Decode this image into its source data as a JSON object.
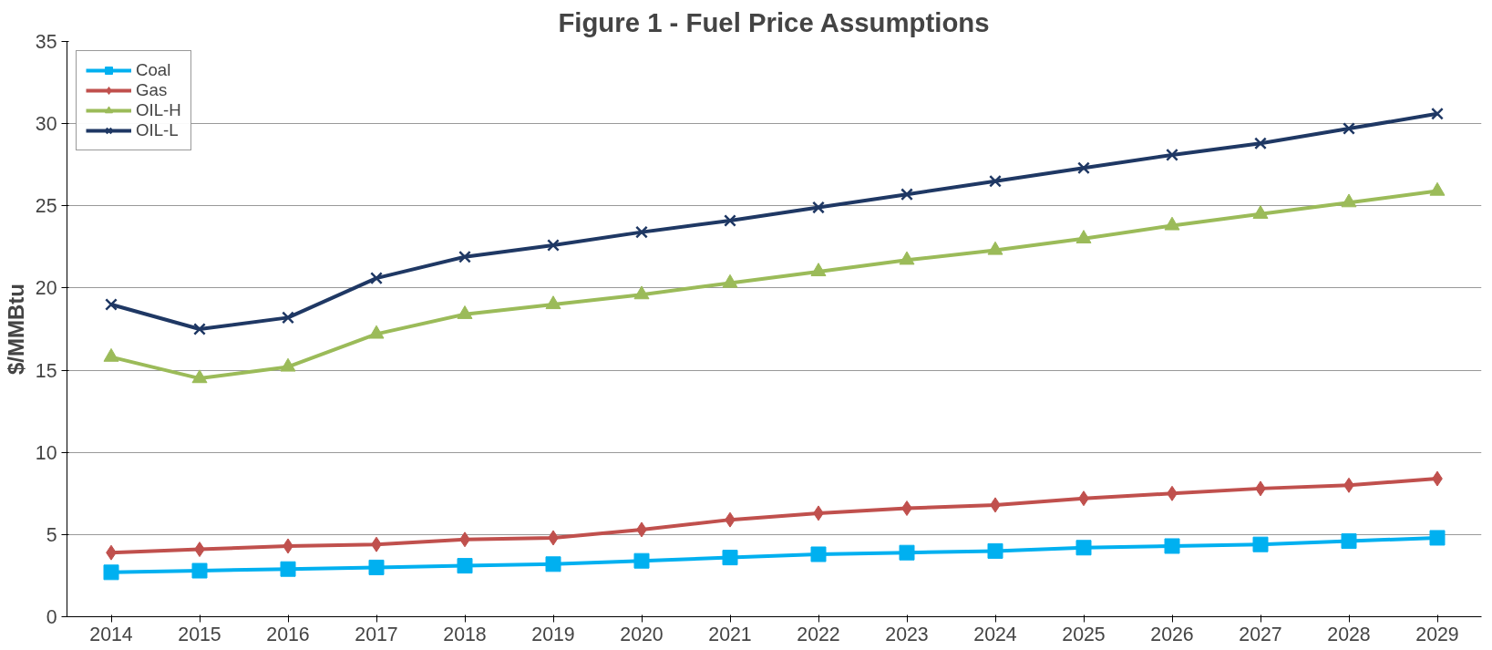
{
  "chart_data": {
    "type": "line",
    "title": "Figure 1 - Fuel Price Assumptions",
    "ylabel": "$/MMBtu",
    "categories": [
      "2014",
      "2015",
      "2016",
      "2017",
      "2018",
      "2019",
      "2020",
      "2021",
      "2022",
      "2023",
      "2024",
      "2025",
      "2026",
      "2027",
      "2028",
      "2029"
    ],
    "series": [
      {
        "name": "Coal",
        "color": "#00b0f0",
        "marker": "square",
        "values": [
          2.7,
          2.8,
          2.9,
          3.0,
          3.1,
          3.2,
          3.4,
          3.6,
          3.8,
          3.9,
          4.0,
          4.2,
          4.3,
          4.4,
          4.6,
          4.8
        ]
      },
      {
        "name": "Gas",
        "color": "#c0504d",
        "marker": "diamond",
        "values": [
          3.9,
          4.1,
          4.3,
          4.4,
          4.7,
          4.8,
          5.3,
          5.9,
          6.3,
          6.6,
          6.8,
          7.2,
          7.5,
          7.8,
          8.0,
          8.4
        ]
      },
      {
        "name": "OIL-H",
        "color": "#9bbb59",
        "marker": "triangle",
        "values": [
          15.8,
          14.5,
          15.2,
          17.2,
          18.4,
          19.0,
          19.6,
          20.3,
          21.0,
          21.7,
          22.3,
          23.0,
          23.8,
          24.5,
          25.2,
          25.9
        ]
      },
      {
        "name": "OIL-L",
        "color": "#1f3864",
        "marker": "cross",
        "values": [
          19.0,
          17.5,
          18.2,
          20.6,
          21.9,
          22.6,
          23.4,
          24.1,
          24.9,
          25.7,
          26.5,
          27.3,
          28.1,
          28.8,
          29.7,
          30.6
        ]
      }
    ],
    "ylim": [
      0,
      35
    ],
    "yticks": [
      0,
      5,
      10,
      15,
      20,
      25,
      30,
      35
    ],
    "grid": "y",
    "legend": "top left",
    "line_style": "solid"
  }
}
